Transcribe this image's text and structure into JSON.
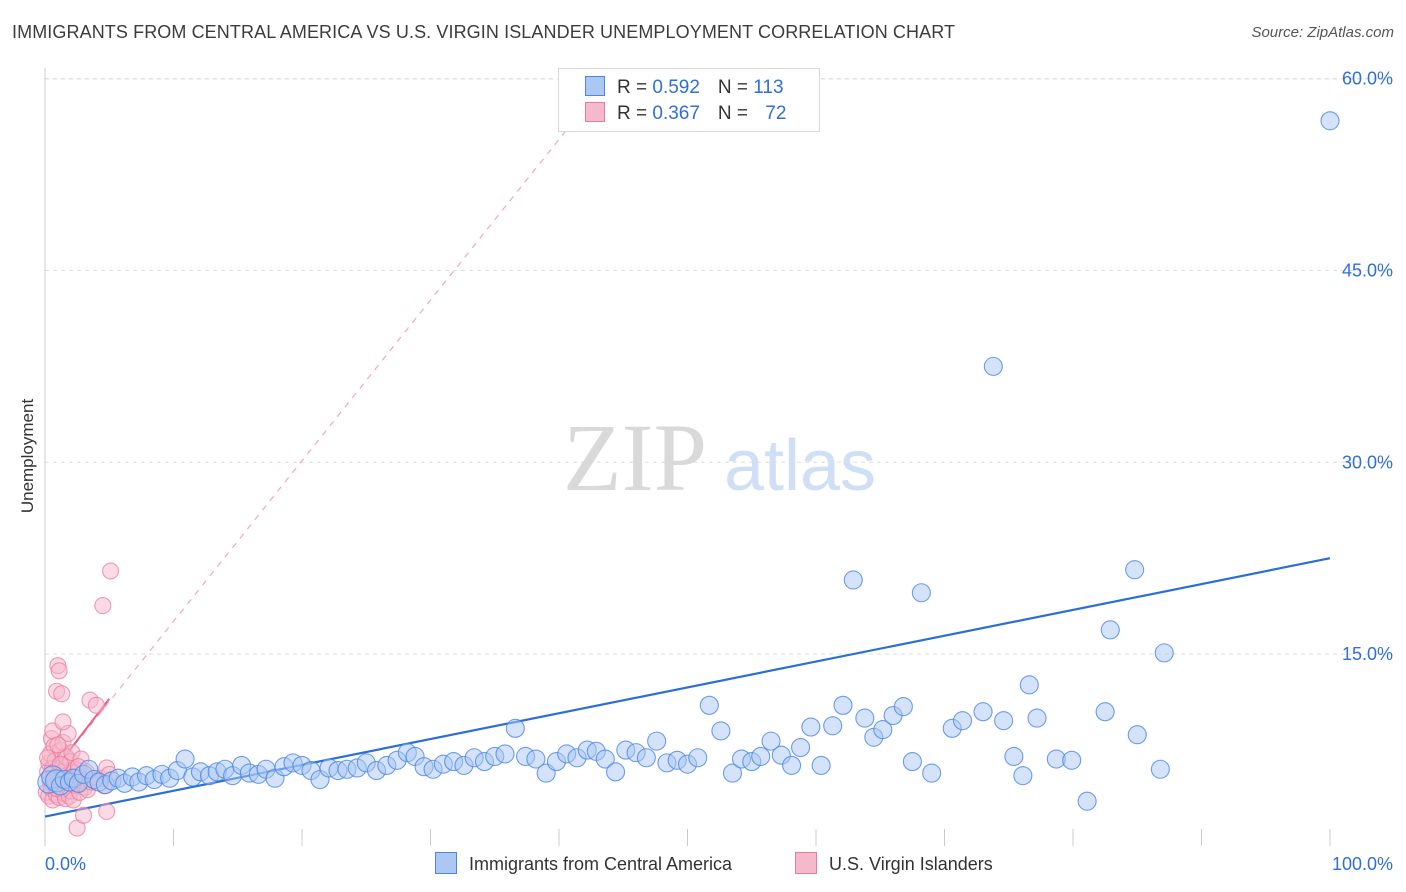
{
  "title": "IMMIGRANTS FROM CENTRAL AMERICA VS U.S. VIRGIN ISLANDER UNEMPLOYMENT CORRELATION CHART",
  "source": "Source: ZipAtlas.com",
  "watermark": {
    "zip": "ZIP",
    "atlas": "atlas"
  },
  "colors": {
    "blue": "#4a86e8",
    "blue_fill": "#aac8f3",
    "blue_line": "#2b6fd6",
    "pink": "#ee7a9b",
    "pink_fill": "#f6b8cb",
    "pink_line": "#e8608a",
    "axis_text": "#2f6fd6",
    "grid": "#dddddd"
  },
  "legend": {
    "rows": [
      {
        "r_label": "R = ",
        "r_value": "0.592",
        "n_label": "N = ",
        "n_value": "113"
      },
      {
        "r_label": "R = ",
        "r_value": "0.367",
        "n_label": "N = ",
        "n_value": "72"
      }
    ]
  },
  "bottom_legend": {
    "blue_label": "Immigrants from Central America",
    "pink_label": "U.S. Virgin Islanders"
  },
  "chart_data": {
    "type": "scatter",
    "title": "IMMIGRANTS FROM CENTRAL AMERICA VS U.S. VIRGIN ISLANDER UNEMPLOYMENT CORRELATION CHART",
    "xlabel": "",
    "ylabel": "Unemployment",
    "xlim": [
      0,
      100
    ],
    "ylim": [
      0,
      63
    ],
    "x_tick_labels": [
      {
        "value": 0,
        "label": "0.0%"
      },
      {
        "value": 100,
        "label": "100.0%"
      }
    ],
    "y_tick_labels": [
      {
        "value": 15,
        "label": "15.0%"
      },
      {
        "value": 30,
        "label": "30.0%"
      },
      {
        "value": 45,
        "label": "45.0%"
      },
      {
        "value": 60,
        "label": "60.0%"
      }
    ],
    "series": [
      {
        "name": "Immigrants from Central America",
        "color": "blue",
        "r": 0.592,
        "n": 113,
        "trend": {
          "x0": 0,
          "y0": 2.3,
          "x1": 100,
          "y1": 22.5
        },
        "points": [
          [
            0.3,
            5.0
          ],
          [
            0.6,
            5.4
          ],
          [
            0.9,
            5.1
          ],
          [
            1.2,
            4.7
          ],
          [
            1.5,
            5.2
          ],
          [
            1.9,
            5.0
          ],
          [
            2.2,
            5.3
          ],
          [
            2.6,
            4.9
          ],
          [
            3.0,
            5.6
          ],
          [
            3.4,
            6.0
          ],
          [
            3.8,
            5.2
          ],
          [
            4.2,
            5.0
          ],
          [
            4.7,
            4.8
          ],
          [
            5.2,
            5.1
          ],
          [
            5.7,
            5.3
          ],
          [
            6.2,
            4.9
          ],
          [
            6.8,
            5.4
          ],
          [
            7.3,
            5.0
          ],
          [
            7.9,
            5.5
          ],
          [
            8.5,
            5.2
          ],
          [
            9.1,
            5.6
          ],
          [
            9.7,
            5.3
          ],
          [
            10.3,
            5.9
          ],
          [
            10.9,
            6.8
          ],
          [
            11.5,
            5.4
          ],
          [
            12.1,
            5.8
          ],
          [
            12.8,
            5.5
          ],
          [
            13.4,
            5.8
          ],
          [
            14.0,
            6.0
          ],
          [
            14.6,
            5.5
          ],
          [
            15.3,
            6.3
          ],
          [
            15.9,
            5.7
          ],
          [
            16.6,
            5.6
          ],
          [
            17.2,
            6.0
          ],
          [
            17.9,
            5.3
          ],
          [
            18.6,
            6.2
          ],
          [
            19.3,
            6.5
          ],
          [
            20.0,
            6.3
          ],
          [
            20.7,
            5.9
          ],
          [
            21.4,
            5.2
          ],
          [
            22.1,
            6.1
          ],
          [
            22.8,
            5.9
          ],
          [
            23.5,
            6.0
          ],
          [
            24.3,
            6.1
          ],
          [
            25.0,
            6.5
          ],
          [
            25.8,
            5.9
          ],
          [
            26.6,
            6.3
          ],
          [
            27.4,
            6.7
          ],
          [
            28.2,
            7.3
          ],
          [
            28.8,
            7.0
          ],
          [
            29.5,
            6.2
          ],
          [
            30.2,
            6.0
          ],
          [
            31.0,
            6.4
          ],
          [
            31.8,
            6.6
          ],
          [
            32.6,
            6.3
          ],
          [
            33.4,
            6.9
          ],
          [
            34.2,
            6.6
          ],
          [
            35.0,
            7.0
          ],
          [
            35.8,
            7.2
          ],
          [
            36.6,
            9.2
          ],
          [
            37.4,
            7.0
          ],
          [
            38.2,
            6.8
          ],
          [
            39.0,
            5.7
          ],
          [
            39.8,
            6.6
          ],
          [
            40.6,
            7.2
          ],
          [
            41.4,
            6.9
          ],
          [
            42.2,
            7.5
          ],
          [
            42.9,
            7.4
          ],
          [
            43.6,
            6.8
          ],
          [
            44.4,
            5.8
          ],
          [
            45.2,
            7.5
          ],
          [
            46.0,
            7.3
          ],
          [
            46.8,
            6.9
          ],
          [
            47.6,
            8.2
          ],
          [
            48.4,
            6.5
          ],
          [
            49.2,
            6.7
          ],
          [
            50.0,
            6.4
          ],
          [
            50.8,
            6.9
          ],
          [
            51.7,
            11.0
          ],
          [
            52.6,
            9.0
          ],
          [
            53.5,
            5.7
          ],
          [
            54.2,
            6.8
          ],
          [
            55.0,
            6.6
          ],
          [
            55.7,
            7.0
          ],
          [
            56.5,
            8.2
          ],
          [
            57.3,
            7.1
          ],
          [
            58.1,
            6.3
          ],
          [
            58.8,
            7.7
          ],
          [
            59.6,
            9.3
          ],
          [
            60.4,
            6.3
          ],
          [
            61.3,
            9.4
          ],
          [
            62.1,
            11.0
          ],
          [
            62.9,
            20.8
          ],
          [
            63.8,
            10.0
          ],
          [
            64.5,
            8.5
          ],
          [
            65.2,
            9.1
          ],
          [
            66.0,
            10.2
          ],
          [
            66.8,
            10.9
          ],
          [
            67.5,
            6.6
          ],
          [
            68.2,
            19.8
          ],
          [
            69.0,
            5.7
          ],
          [
            70.6,
            9.2
          ],
          [
            71.4,
            9.8
          ],
          [
            73.0,
            10.5
          ],
          [
            73.8,
            37.5
          ],
          [
            74.6,
            9.8
          ],
          [
            75.4,
            7.0
          ],
          [
            76.1,
            5.5
          ],
          [
            76.6,
            12.6
          ],
          [
            77.2,
            10.0
          ],
          [
            78.7,
            6.8
          ],
          [
            79.9,
            6.7
          ],
          [
            81.1,
            3.5
          ],
          [
            82.5,
            10.5
          ],
          [
            82.9,
            16.9
          ],
          [
            84.8,
            21.6
          ],
          [
            85.0,
            8.7
          ],
          [
            86.8,
            6.0
          ],
          [
            87.1,
            15.1
          ],
          [
            100.0,
            56.7
          ]
        ]
      },
      {
        "name": "U.S. Virgin Islanders",
        "color": "pink",
        "r": 0.367,
        "n": 72,
        "trend": {
          "x0": 0,
          "y0": 5.0,
          "x1": 5.0,
          "y1": 11.5
        },
        "trend_extended": {
          "x0": 0,
          "y0": 5.0,
          "x1": 41.0,
          "y1": 56.5
        },
        "points": [
          [
            0.1,
            4.2
          ],
          [
            0.2,
            5.8
          ],
          [
            0.3,
            6.5
          ],
          [
            0.3,
            3.9
          ],
          [
            0.4,
            7.2
          ],
          [
            0.4,
            5.0
          ],
          [
            0.5,
            8.4
          ],
          [
            0.5,
            4.5
          ],
          [
            0.6,
            6.1
          ],
          [
            0.6,
            3.6
          ],
          [
            0.7,
            7.8
          ],
          [
            0.7,
            5.3
          ],
          [
            0.8,
            4.8
          ],
          [
            0.8,
            6.7
          ],
          [
            0.9,
            12.1
          ],
          [
            0.9,
            4.0
          ],
          [
            1.0,
            14.1
          ],
          [
            1.0,
            5.6
          ],
          [
            1.1,
            13.7
          ],
          [
            1.1,
            3.8
          ],
          [
            1.2,
            7.5
          ],
          [
            1.2,
            5.1
          ],
          [
            1.3,
            11.9
          ],
          [
            1.3,
            4.4
          ],
          [
            1.4,
            6.3
          ],
          [
            1.4,
            8.1
          ],
          [
            1.5,
            5.9
          ],
          [
            1.5,
            4.1
          ],
          [
            1.6,
            7.0
          ],
          [
            1.6,
            3.7
          ],
          [
            1.7,
            5.5
          ],
          [
            1.7,
            6.9
          ],
          [
            1.8,
            4.6
          ],
          [
            1.8,
            8.8
          ],
          [
            1.9,
            5.2
          ],
          [
            1.9,
            3.9
          ],
          [
            2.0,
            6.6
          ],
          [
            2.0,
            4.3
          ],
          [
            2.1,
            5.7
          ],
          [
            2.1,
            7.3
          ],
          [
            2.2,
            4.9
          ],
          [
            2.2,
            3.6
          ],
          [
            2.3,
            6.0
          ],
          [
            2.4,
            5.4
          ],
          [
            2.4,
            4.7
          ],
          [
            2.5,
            1.4
          ],
          [
            2.6,
            5.9
          ],
          [
            2.7,
            4.2
          ],
          [
            2.8,
            6.8
          ],
          [
            2.9,
            5.1
          ],
          [
            3.0,
            2.4
          ],
          [
            3.1,
            4.6
          ],
          [
            3.2,
            5.8
          ],
          [
            3.3,
            4.4
          ],
          [
            3.5,
            11.4
          ],
          [
            3.6,
            5.0
          ],
          [
            4.0,
            11.0
          ],
          [
            4.3,
            5.3
          ],
          [
            4.6,
            4.7
          ],
          [
            4.8,
            6.1
          ],
          [
            5.0,
            5.6
          ],
          [
            0.6,
            9.0
          ],
          [
            1.0,
            7.9
          ],
          [
            1.4,
            9.7
          ],
          [
            0.2,
            6.9
          ],
          [
            0.9,
            4.5
          ],
          [
            1.2,
            6.4
          ],
          [
            2.6,
            6.2
          ],
          [
            3.8,
            5.1
          ],
          [
            4.5,
            18.8
          ],
          [
            4.8,
            2.7
          ],
          [
            5.1,
            21.5
          ]
        ]
      }
    ]
  }
}
